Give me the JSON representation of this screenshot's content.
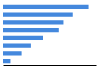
{
  "chart_data": {
    "type": "bar",
    "orientation": "horizontal",
    "categories": [
      null,
      null,
      null,
      null,
      null,
      null,
      null,
      null
    ],
    "values": [
      92,
      75,
      65,
      60,
      43,
      30,
      20,
      8
    ],
    "color": "#4488dd",
    "xlim": [
      0,
      100
    ],
    "tick_labels": false
  }
}
